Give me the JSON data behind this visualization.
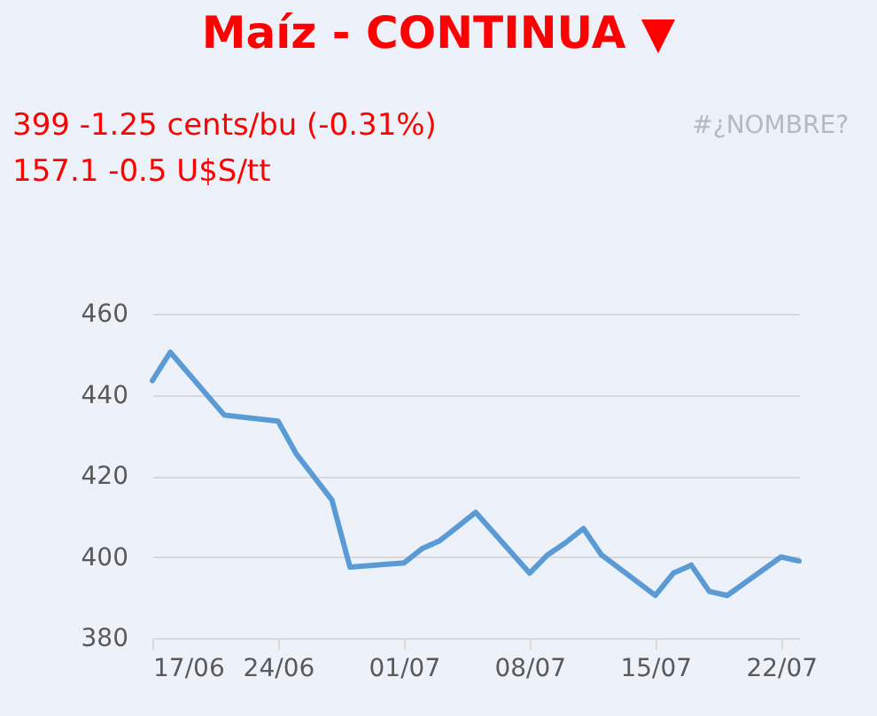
{
  "chart_data": {
    "type": "line",
    "title": "Maíz - CONTINUA ▼",
    "annotations": [
      "399 -1.25 cents/bu (-0.31%)",
      "157.1 -0.5 U$S/tt",
      "#¿NOMBRE?"
    ],
    "x": [
      "--06-17",
      "--06-18",
      "--06-21",
      "--06-24",
      "--06-25",
      "--06-27",
      "--06-28",
      "--07-01",
      "--07-02",
      "--07-03",
      "--07-05",
      "--07-08",
      "--07-09",
      "--07-10",
      "--07-11",
      "--07-12",
      "--07-15",
      "--07-16",
      "--07-17",
      "--07-18",
      "--07-19",
      "--07-22",
      "--07-23"
    ],
    "series": [
      {
        "color": "#5b9bd5",
        "values": [
          443.5,
          450.5,
          435,
          433.5,
          425.5,
          414,
          397.5,
          398.5,
          402,
          404,
          411,
          396,
          400.5,
          403.5,
          407,
          400.5,
          390.5,
          396,
          398,
          391.5,
          390.5,
          400,
          399
        ]
      }
    ],
    "xlim": [
      "--06-17",
      "--07-23"
    ],
    "xticks": [
      {
        "value": "--06-17",
        "label": "17/06"
      },
      {
        "value": "--06-24",
        "label": "24/06"
      },
      {
        "value": "--07-01",
        "label": "01/07"
      },
      {
        "value": "--07-08",
        "label": "08/07"
      },
      {
        "value": "--07-15",
        "label": "15/07"
      },
      {
        "value": "--07-22",
        "label": "22/07"
      }
    ],
    "ylim": [
      380,
      460
    ],
    "yticks": [
      380,
      400,
      420,
      440,
      460
    ],
    "grid": "y",
    "marker": "none",
    "line_style": "solid"
  }
}
